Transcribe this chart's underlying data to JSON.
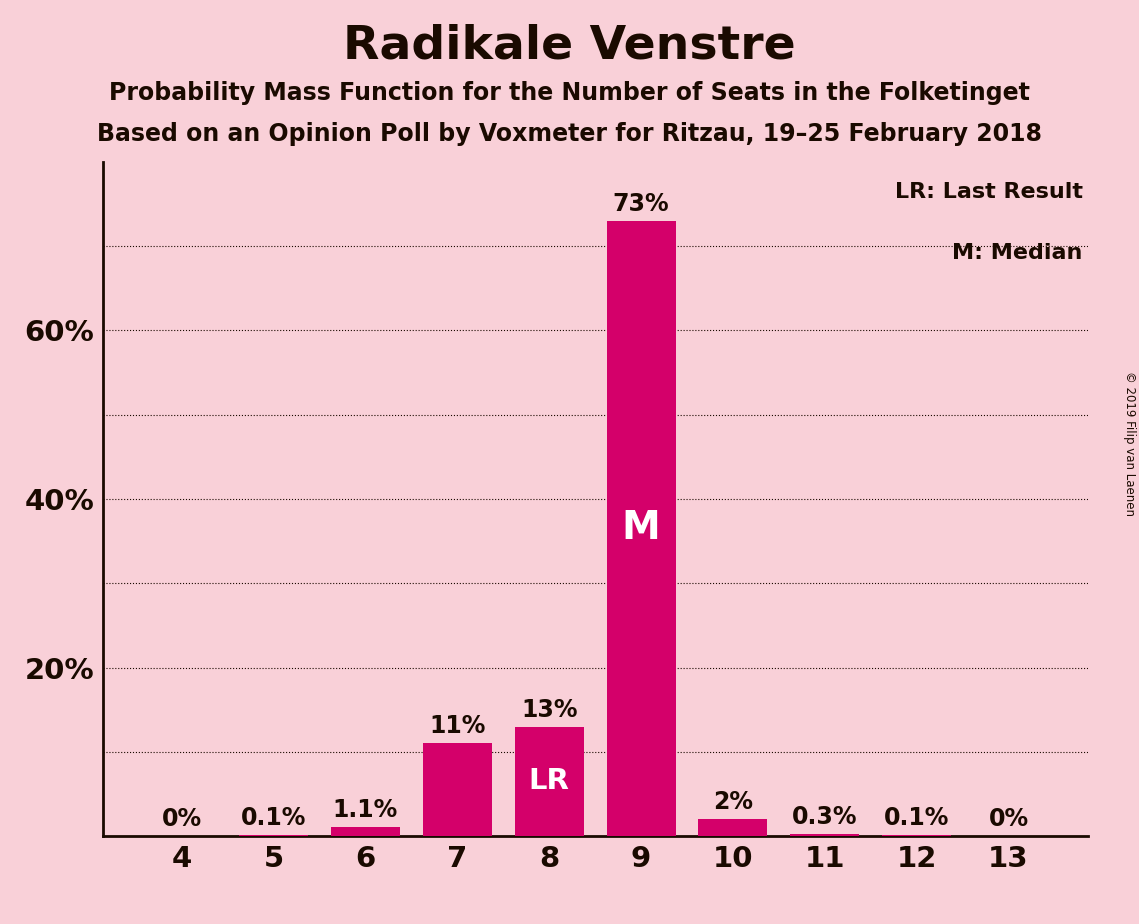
{
  "title": "Radikale Venstre",
  "subtitle1": "Probability Mass Function for the Number of Seats in the Folketinget",
  "subtitle2": "Based on an Opinion Poll by Voxmeter for Ritzau, 19–25 February 2018",
  "categories": [
    4,
    5,
    6,
    7,
    8,
    9,
    10,
    11,
    12,
    13
  ],
  "values": [
    0.0,
    0.1,
    1.1,
    11.0,
    13.0,
    73.0,
    2.0,
    0.3,
    0.1,
    0.0
  ],
  "bar_color": "#D4006A",
  "background_color": "#F9D0D8",
  "bar_labels": [
    "0%",
    "0.1%",
    "1.1%",
    "11%",
    "13%",
    "73%",
    "2%",
    "0.3%",
    "0.1%",
    "0%"
  ],
  "median_bar": 9,
  "last_result_bar": 8,
  "ylim": [
    0,
    80
  ],
  "yticks": [
    20,
    40,
    60
  ],
  "ytick_labels": [
    "20%",
    "40%",
    "60%"
  ],
  "grid_y": [
    10,
    20,
    30,
    40,
    50,
    60,
    70
  ],
  "legend_text1": "LR: Last Result",
  "legend_text2": "M: Median",
  "copyright": "© 2019 Filip van Laenen",
  "title_fontsize": 34,
  "subtitle_fontsize": 17,
  "bar_label_fontsize": 17,
  "axis_tick_fontsize": 21,
  "text_color": "#1a0a00"
}
